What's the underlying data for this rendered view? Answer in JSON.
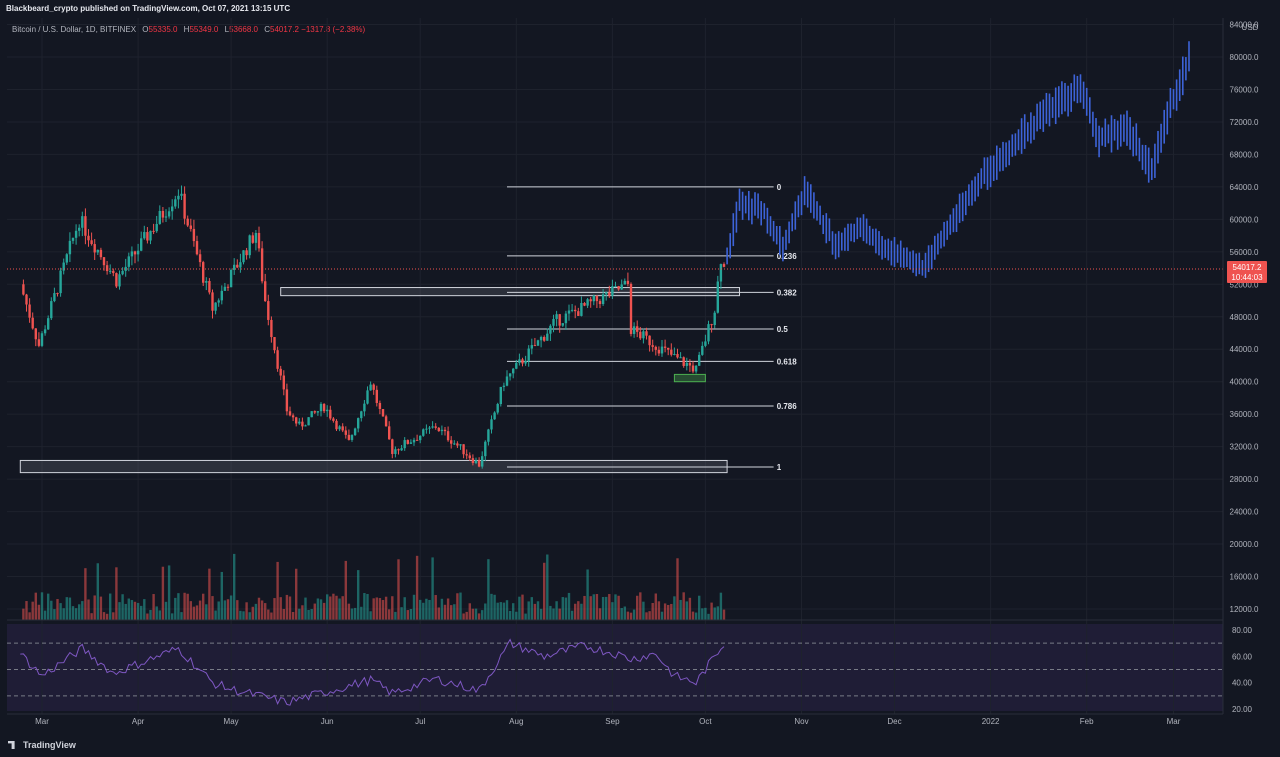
{
  "header": {
    "text": "Blackbeard_crypto published on TradingView.com, Oct 07, 2021 13:15 UTC"
  },
  "legend": {
    "symbol": "Bitcoin / U.S. Dollar, 1D, BITFINEX",
    "open_label": "O",
    "open": "55335.0",
    "high_label": "H",
    "high": "55349.0",
    "low_label": "L",
    "low": "53668.0",
    "close_label": "C",
    "close": "54017.2",
    "change": "−1317.8 (−2.38%)"
  },
  "price_axis": {
    "currency": "USD",
    "current_price": "54017.2",
    "countdown": "10:44:03"
  },
  "brand": {
    "text": "TradingView"
  },
  "colors": {
    "up": "#26a69a",
    "down": "#ef5350",
    "projection": "#3d63d8",
    "rsi": "#7e57c2",
    "background": "#131722"
  },
  "chart_data": {
    "type": "candlestick",
    "y_ticks": [
      12000,
      16000,
      20000,
      24000,
      28000,
      32000,
      36000,
      40000,
      44000,
      48000,
      52000,
      56000,
      60000,
      64000,
      68000,
      72000,
      76000,
      80000,
      84000
    ],
    "y_tick_labels": [
      "12000.0",
      "16000.0",
      "20000.0",
      "24000.0",
      "28000.0",
      "32000.0",
      "36000.0",
      "40000.0",
      "44000.0",
      "48000.0",
      "52000.0",
      "56000.0",
      "60000.0",
      "64000.0",
      "68000.0",
      "72000.0",
      "76000.0",
      "80000.0",
      "84000.0"
    ],
    "x_ticks": [
      {
        "label": "Mar",
        "date": "2021-03-01"
      },
      {
        "label": "Apr",
        "date": "2021-04-01"
      },
      {
        "label": "May",
        "date": "2021-05-01"
      },
      {
        "label": "Jun",
        "date": "2021-06-01"
      },
      {
        "label": "Jul",
        "date": "2021-07-01"
      },
      {
        "label": "Aug",
        "date": "2021-08-01"
      },
      {
        "label": "Sep",
        "date": "2021-09-01"
      },
      {
        "label": "Oct",
        "date": "2021-10-01"
      },
      {
        "label": "Nov",
        "date": "2021-11-01"
      },
      {
        "label": "Dec",
        "date": "2021-12-01"
      },
      {
        "label": "2022",
        "date": "2022-01-01"
      },
      {
        "label": "Feb",
        "date": "2022-02-01"
      },
      {
        "label": "Mar",
        "date": "2022-03-01"
      }
    ],
    "price_path": [
      [
        "2021-02-22",
        52000
      ],
      [
        "2021-02-28",
        44500
      ],
      [
        "2021-03-13",
        60000
      ],
      [
        "2021-03-25",
        52500
      ],
      [
        "2021-04-14",
        63500
      ],
      [
        "2021-04-25",
        49000
      ],
      [
        "2021-05-09",
        58500
      ],
      [
        "2021-05-12",
        50000
      ],
      [
        "2021-05-19",
        36500
      ],
      [
        "2021-05-23",
        34500
      ],
      [
        "2021-05-31",
        37000
      ],
      [
        "2021-06-08",
        32500
      ],
      [
        "2021-06-15",
        40000
      ],
      [
        "2021-06-22",
        31500
      ],
      [
        "2021-07-06",
        34500
      ],
      [
        "2021-07-20",
        29800
      ],
      [
        "2021-07-28",
        40000
      ],
      [
        "2021-08-14",
        47500
      ],
      [
        "2021-08-22",
        49000
      ],
      [
        "2021-09-06",
        52000
      ],
      [
        "2021-09-07",
        46500
      ],
      [
        "2021-09-21",
        43000
      ],
      [
        "2021-09-28",
        41500
      ],
      [
        "2021-10-04",
        49000
      ],
      [
        "2021-10-06",
        55300
      ],
      [
        "2021-10-07",
        54017
      ]
    ],
    "projection_path": [
      [
        "2021-10-08",
        55500
      ],
      [
        "2021-10-12",
        62000
      ],
      [
        "2021-10-20",
        61000
      ],
      [
        "2021-10-26",
        56500
      ],
      [
        "2021-11-02",
        63500
      ],
      [
        "2021-11-12",
        57000
      ],
      [
        "2021-11-20",
        59000
      ],
      [
        "2021-11-28",
        56500
      ],
      [
        "2021-12-10",
        54000
      ],
      [
        "2021-12-20",
        60000
      ],
      [
        "2021-12-30",
        65500
      ],
      [
        "2022-01-12",
        70500
      ],
      [
        "2022-01-20",
        73500
      ],
      [
        "2022-01-30",
        76500
      ],
      [
        "2022-02-05",
        70000
      ],
      [
        "2022-02-14",
        71500
      ],
      [
        "2022-02-22",
        66000
      ],
      [
        "2022-02-28",
        74000
      ],
      [
        "2022-03-06",
        79500
      ]
    ],
    "fib_levels": [
      {
        "label": "0",
        "price": 64000
      },
      {
        "label": "0.236",
        "price": 55500
      },
      {
        "label": "0.382",
        "price": 51000
      },
      {
        "label": "0.5",
        "price": 46500
      },
      {
        "label": "0.618",
        "price": 42500
      },
      {
        "label": "0.786",
        "price": 37000
      },
      {
        "label": "1",
        "price": 29500
      }
    ],
    "zones": [
      {
        "from": "2021-02-22",
        "to": "2021-10-08",
        "low": 28800,
        "high": 30300,
        "color": "gray"
      },
      {
        "from": "2021-05-17",
        "to": "2021-10-12",
        "low": 50600,
        "high": 51600,
        "color": "gray"
      },
      {
        "from": "2021-09-21",
        "to": "2021-10-01",
        "low": 40000,
        "high": 40900,
        "color": "green"
      }
    ],
    "rsi": {
      "levels": [
        70,
        50,
        30
      ],
      "y_tick_labels": [
        "80.00",
        "60.00",
        "40.00",
        "20.00"
      ],
      "path": [
        [
          "2021-02-22",
          62
        ],
        [
          "2021-03-01",
          45
        ],
        [
          "2021-03-14",
          66
        ],
        [
          "2021-03-24",
          47
        ],
        [
          "2021-04-14",
          66
        ],
        [
          "2021-04-25",
          40
        ],
        [
          "2021-05-01",
          35
        ],
        [
          "2021-05-19",
          25
        ],
        [
          "2021-06-15",
          42
        ],
        [
          "2021-06-22",
          32
        ],
        [
          "2021-07-06",
          43
        ],
        [
          "2021-07-20",
          34
        ],
        [
          "2021-07-30",
          70
        ],
        [
          "2021-08-10",
          60
        ],
        [
          "2021-08-23",
          68
        ],
        [
          "2021-09-02",
          62
        ],
        [
          "2021-09-07",
          58
        ],
        [
          "2021-09-15",
          62
        ],
        [
          "2021-09-21",
          45
        ],
        [
          "2021-09-28",
          40
        ],
        [
          "2021-10-07",
          70
        ]
      ]
    }
  }
}
